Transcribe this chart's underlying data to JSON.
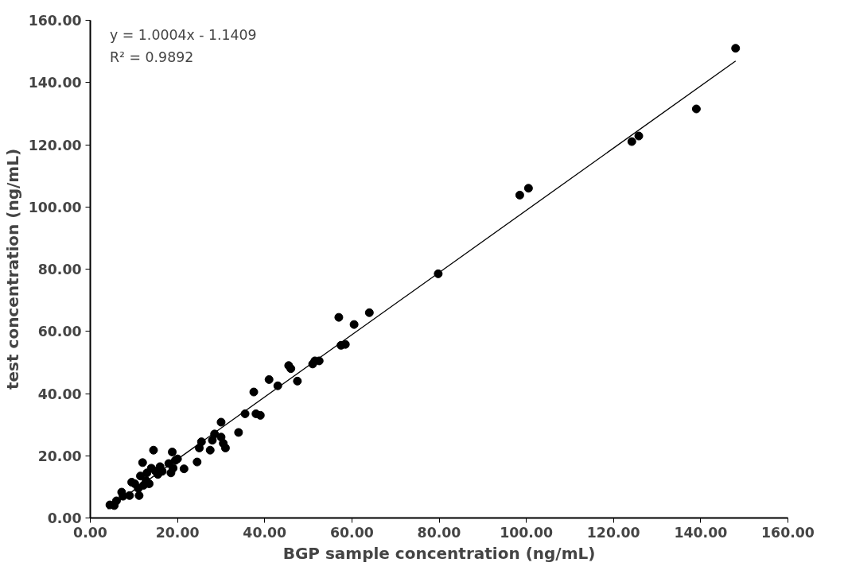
{
  "chart_data": {
    "type": "scatter",
    "xlabel": "BGP sample concentration (ng/mL)",
    "ylabel": "test concentration (ng/mL)",
    "annotations": [
      "y = 1.0004x - 1.1409",
      "R² = 0.9892"
    ],
    "xlim": [
      0,
      160
    ],
    "ylim": [
      0,
      160
    ],
    "xticks": [
      {
        "value": 0,
        "label": "0.00"
      },
      {
        "value": 20,
        "label": "20.00"
      },
      {
        "value": 40,
        "label": "40.00"
      },
      {
        "value": 60,
        "label": "60.00"
      },
      {
        "value": 80,
        "label": "80.00"
      },
      {
        "value": 100,
        "label": "100.00"
      },
      {
        "value": 120,
        "label": "120.00"
      },
      {
        "value": 140,
        "label": "140.00"
      },
      {
        "value": 160,
        "label": "160.00"
      }
    ],
    "yticks": [
      {
        "value": 0,
        "label": "0.00"
      },
      {
        "value": 20,
        "label": "20.00"
      },
      {
        "value": 40,
        "label": "40.00"
      },
      {
        "value": 60,
        "label": "60.00"
      },
      {
        "value": 80,
        "label": "80.00"
      },
      {
        "value": 100,
        "label": "100.00"
      },
      {
        "value": 120,
        "label": "120.00"
      },
      {
        "value": 140,
        "label": "140.00"
      },
      {
        "value": 160,
        "label": "160.00"
      }
    ],
    "grid": false,
    "series": [
      {
        "marker": "circle",
        "color": "#000000",
        "x": [
          4.5,
          5.5,
          6.0,
          7.2,
          7.5,
          9.0,
          9.5,
          10.2,
          11.0,
          11.2,
          11.5,
          12.0,
          12.2,
          12.8,
          13.0,
          13.5,
          14.0,
          14.5,
          15.0,
          15.5,
          16.0,
          16.5,
          18.0,
          18.5,
          18.8,
          19.0,
          19.5,
          20.0,
          21.5,
          24.5,
          25.0,
          25.5,
          27.5,
          28.0,
          28.5,
          30.0,
          30.0,
          30.5,
          31.0,
          34.0,
          35.5,
          37.5,
          38.0,
          39.0,
          41.0,
          43.0,
          45.5,
          46.0,
          47.5,
          51.0,
          51.5,
          52.5,
          57.0,
          57.5,
          58.5,
          60.5,
          64.0,
          79.8,
          98.5,
          100.5,
          124.2,
          125.8,
          139.0,
          148.0
        ],
        "values": [
          4.2,
          4.0,
          5.5,
          8.3,
          7.0,
          7.2,
          11.5,
          11.0,
          9.5,
          7.2,
          13.5,
          17.8,
          10.5,
          12.0,
          14.5,
          11.0,
          16.0,
          21.8,
          15.0,
          14.0,
          16.5,
          15.0,
          17.5,
          14.5,
          21.2,
          16.0,
          18.5,
          19.0,
          15.8,
          18.0,
          22.5,
          24.5,
          21.8,
          25.0,
          27.0,
          30.8,
          26.0,
          24.0,
          22.5,
          27.5,
          33.5,
          40.5,
          33.5,
          33.0,
          44.5,
          42.5,
          49.0,
          48.0,
          44.0,
          49.5,
          50.5,
          50.5,
          64.5,
          55.5,
          55.8,
          62.2,
          66.0,
          78.5,
          103.8,
          106.0,
          121.0,
          122.8,
          131.5,
          151.0
        ]
      },
      {
        "type": "line",
        "color": "#000000",
        "line_style": "solid",
        "x": [
          4.0,
          148.0
        ],
        "values": [
          2.9,
          146.9
        ]
      }
    ]
  }
}
